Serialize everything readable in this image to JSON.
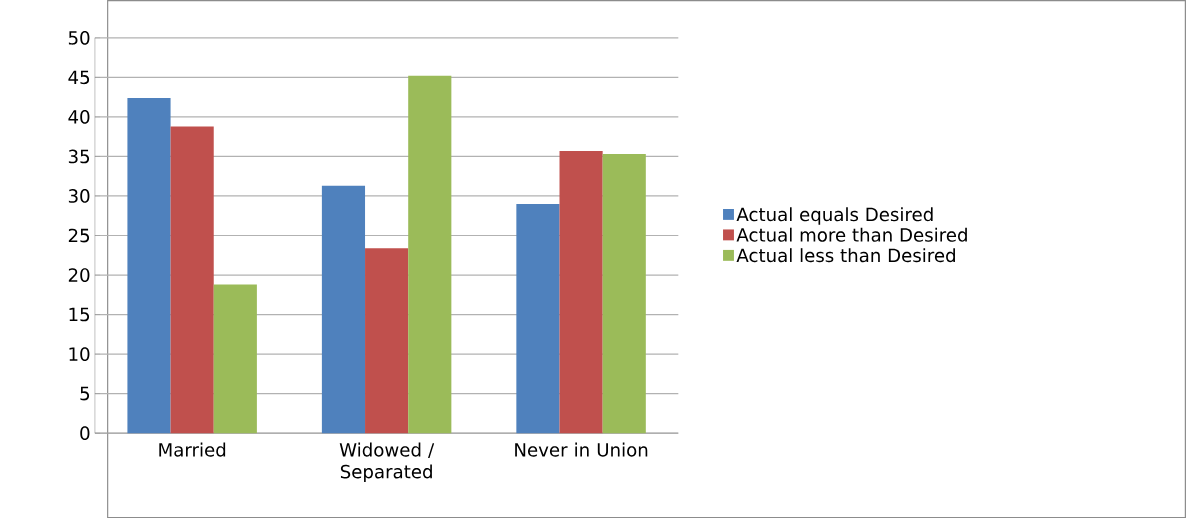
{
  "chart_data": {
    "type": "bar",
    "categories": [
      "Married",
      "Widowed / Separated",
      "Never in Union"
    ],
    "series": [
      {
        "name": "Actual equals Desired",
        "color": "#4f81bd",
        "values": [
          42.4,
          31.3,
          29.0
        ]
      },
      {
        "name": "Actual more than Desired",
        "color": "#c0504d",
        "values": [
          38.8,
          23.4,
          35.7
        ]
      },
      {
        "name": "Actual less than Desired",
        "color": "#9bbb59",
        "values": [
          18.8,
          45.2,
          35.3
        ]
      }
    ],
    "ylim": [
      0,
      50
    ],
    "yticks": [
      0,
      5,
      10,
      15,
      20,
      25,
      30,
      35,
      40,
      45,
      50
    ],
    "grid": "y",
    "legend": "right"
  }
}
